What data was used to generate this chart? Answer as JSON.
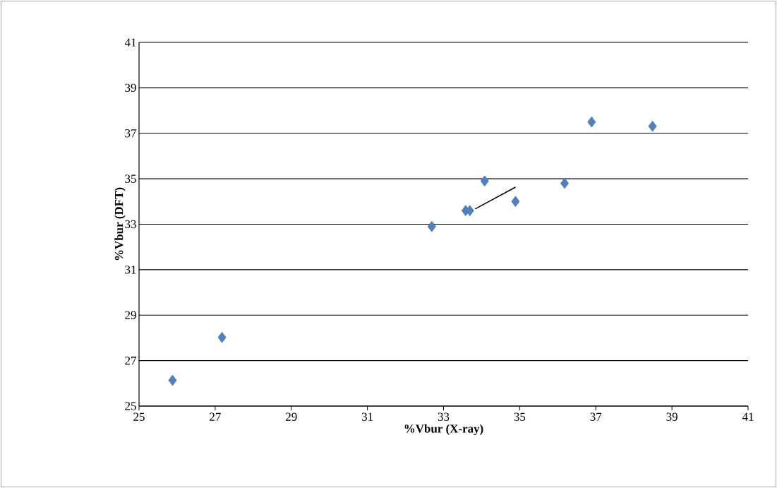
{
  "chart_data": {
    "type": "scatter",
    "xlabel": "%Vbur (X-ray)",
    "ylabel": "%Vbur (DFT)",
    "xlim": [
      25,
      41
    ],
    "xticks": [
      25,
      27,
      29,
      31,
      33,
      35,
      37,
      39,
      41
    ],
    "ylim": [
      25,
      41
    ],
    "yticks": [
      25,
      27,
      29,
      31,
      33,
      35,
      37,
      39,
      41
    ],
    "grid": "y",
    "series": [
      {
        "marker": "diamond",
        "color": "#4f81bd",
        "x": [
          25.88,
          27.18,
          32.69,
          33.58,
          33.69,
          34.08,
          34.89,
          36.18,
          36.89,
          38.49
        ],
        "values": [
          26.13,
          28.02,
          32.9,
          33.6,
          33.6,
          34.9,
          34.0,
          34.8,
          37.5,
          37.31
        ]
      },
      {
        "type": "line",
        "color": "#000000",
        "x": [
          33.83,
          34.89
        ],
        "values": [
          33.67,
          34.63
        ]
      }
    ]
  }
}
